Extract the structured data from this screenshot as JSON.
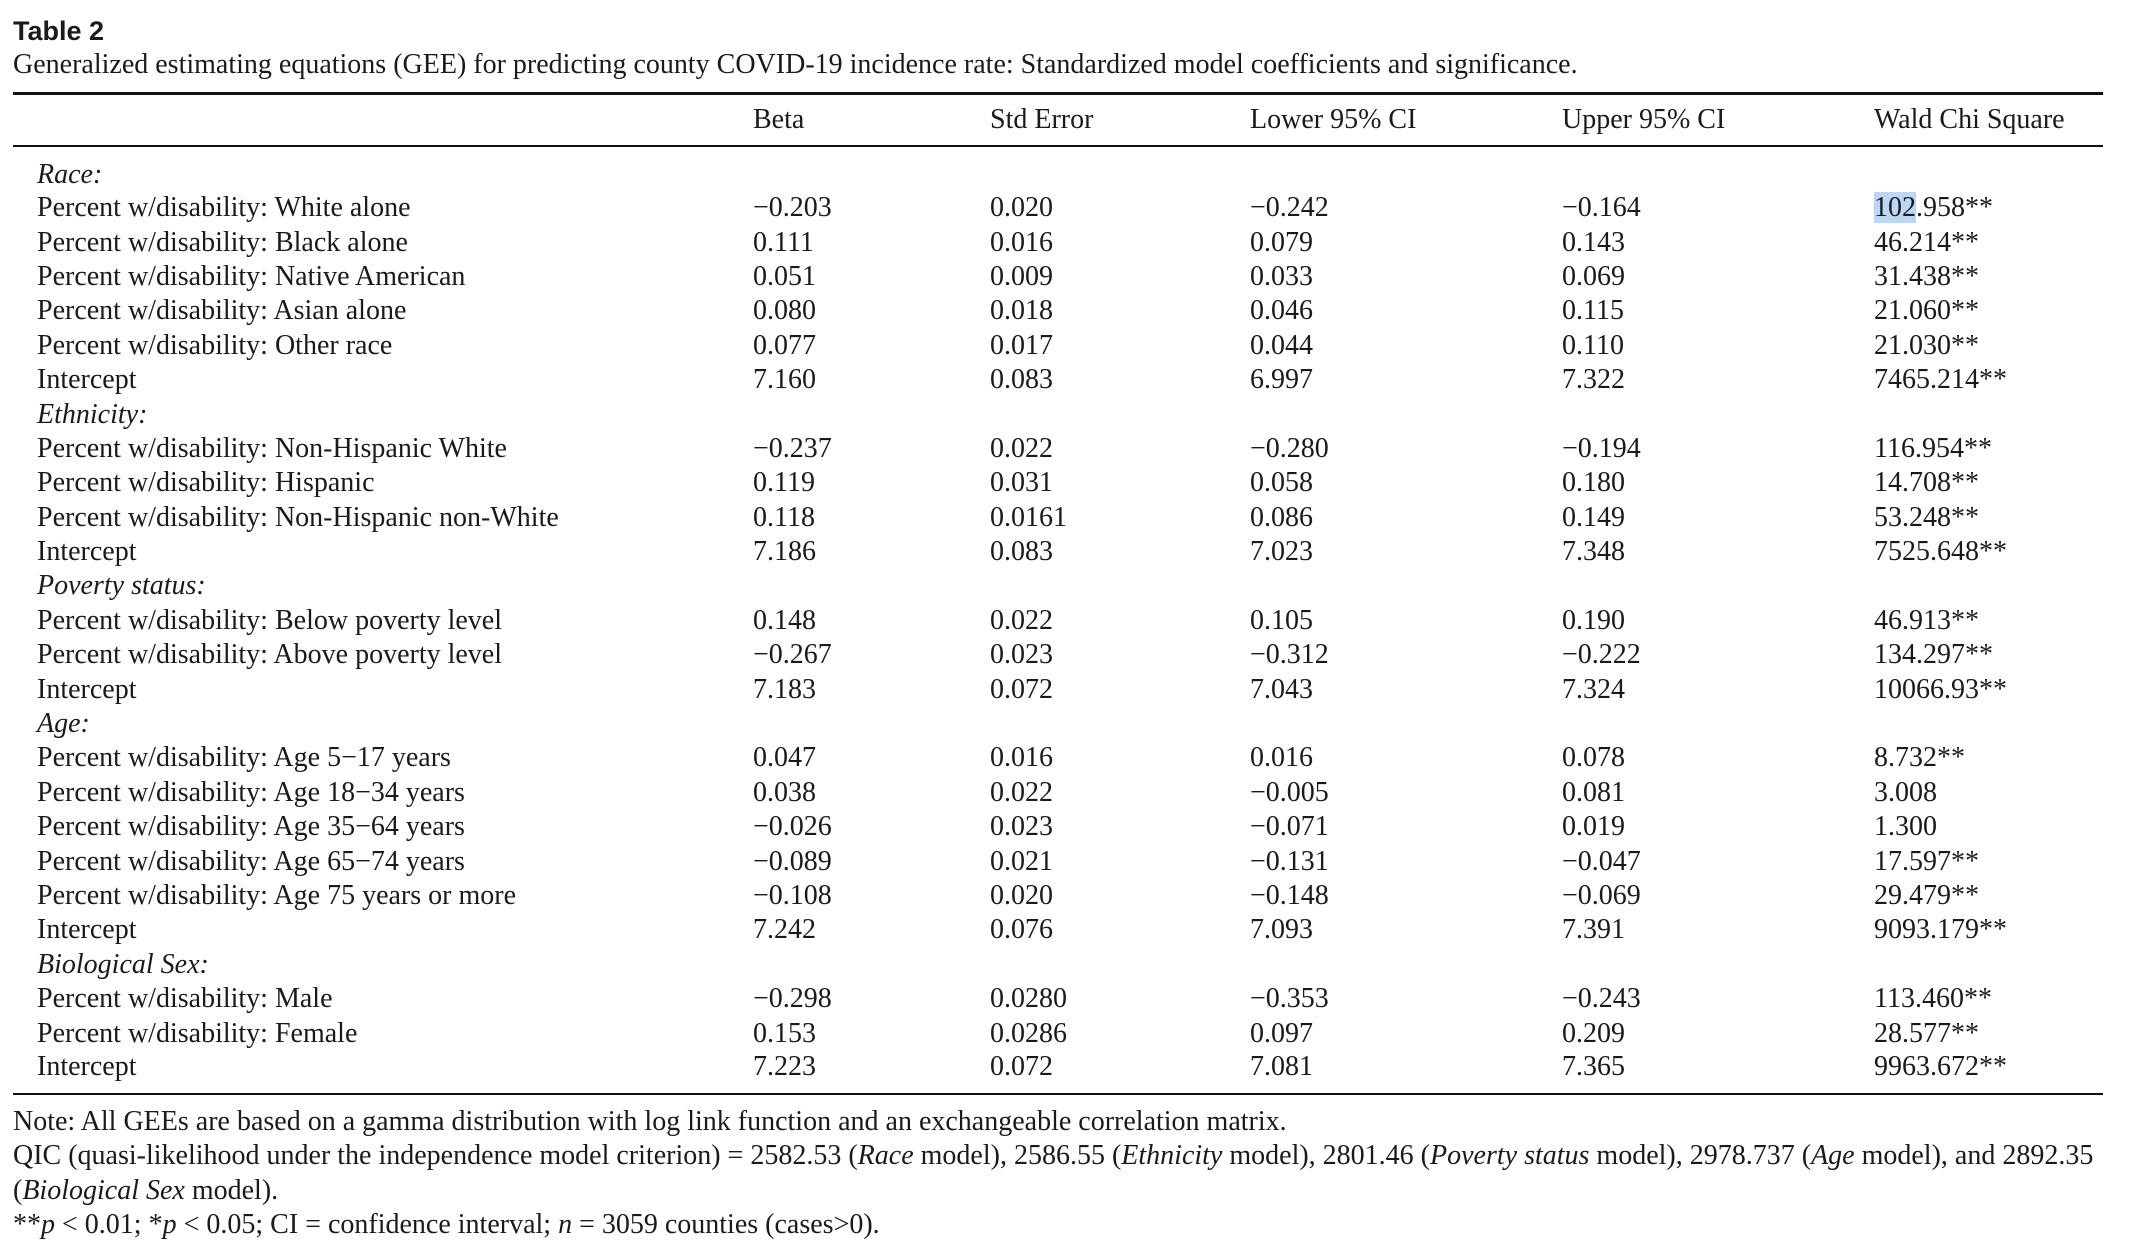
{
  "table_label": "Table 2",
  "caption": "Generalized estimating equations (GEE) for predicting county COVID-19 incidence rate: Standardized model coefficients and significance.",
  "columns": [
    "",
    "Beta",
    "Std Error",
    "Lower 95% CI",
    "Upper 95% CI",
    "Wald Chi Square"
  ],
  "sections": [
    {
      "title": "Race:",
      "rows": [
        [
          "Percent w/disability: White alone",
          "−0.203",
          "0.020",
          "−0.242",
          "−0.164",
          "102.958**"
        ],
        [
          "Percent w/disability: Black alone",
          "0.111",
          "0.016",
          "0.079",
          "0.143",
          "46.214**"
        ],
        [
          "Percent w/disability: Native American",
          "0.051",
          "0.009",
          "0.033",
          "0.069",
          "31.438**"
        ],
        [
          "Percent w/disability: Asian alone",
          "0.080",
          "0.018",
          "0.046",
          "0.115",
          "21.060**"
        ],
        [
          "Percent w/disability: Other race",
          "0.077",
          "0.017",
          "0.044",
          "0.110",
          "21.030**"
        ],
        [
          "Intercept",
          "7.160",
          "0.083",
          "6.997",
          "7.322",
          "7465.214**"
        ]
      ]
    },
    {
      "title": "Ethnicity:",
      "rows": [
        [
          "Percent w/disability: Non-Hispanic White",
          "−0.237",
          "0.022",
          "−0.280",
          "−0.194",
          "116.954**"
        ],
        [
          "Percent w/disability: Hispanic",
          "0.119",
          "0.031",
          "0.058",
          "0.180",
          "14.708**"
        ],
        [
          "Percent w/disability: Non-Hispanic non-White",
          "0.118",
          "0.0161",
          "0.086",
          "0.149",
          "53.248**"
        ],
        [
          "Intercept",
          "7.186",
          "0.083",
          "7.023",
          "7.348",
          "7525.648**"
        ]
      ]
    },
    {
      "title": "Poverty status:",
      "rows": [
        [
          "Percent w/disability: Below poverty level",
          "0.148",
          "0.022",
          "0.105",
          "0.190",
          "46.913**"
        ],
        [
          "Percent w/disability: Above poverty level",
          "−0.267",
          "0.023",
          "−0.312",
          "−0.222",
          "134.297**"
        ],
        [
          "Intercept",
          "7.183",
          "0.072",
          "7.043",
          "7.324",
          "10066.93**"
        ]
      ]
    },
    {
      "title": "Age:",
      "rows": [
        [
          "Percent w/disability: Age 5−17 years",
          "0.047",
          "0.016",
          "0.016",
          "0.078",
          "8.732**"
        ],
        [
          "Percent w/disability: Age 18−34 years",
          "0.038",
          "0.022",
          "−0.005",
          "0.081",
          "3.008"
        ],
        [
          "Percent w/disability: Age 35−64 years",
          "−0.026",
          "0.023",
          "−0.071",
          "0.019",
          "1.300"
        ],
        [
          "Percent w/disability: Age 65−74 years",
          "−0.089",
          "0.021",
          "−0.131",
          "−0.047",
          "17.597**"
        ],
        [
          "Percent w/disability: Age 75 years or more",
          "−0.108",
          "0.020",
          "−0.148",
          "−0.069",
          "29.479**"
        ],
        [
          "Intercept",
          "7.242",
          "0.076",
          "7.093",
          "7.391",
          "9093.179**"
        ]
      ]
    },
    {
      "title": "Biological Sex:",
      "rows": [
        [
          "Percent w/disability: Male",
          "−0.298",
          "0.0280",
          "−0.353",
          "−0.243",
          "113.460**"
        ],
        [
          "Percent w/disability: Female",
          "0.153",
          "0.0286",
          "0.097",
          "0.209",
          "28.577**"
        ],
        [
          "Intercept",
          "7.223",
          "0.072",
          "7.081",
          "7.365",
          "9963.672**"
        ]
      ]
    }
  ],
  "selection": {
    "text": "102",
    "highlight_color": "#bcd6f3"
  },
  "notes": {
    "line1": "Note: All GEEs are based on a gamma distribution with log link function and an exchangeable correlation matrix.",
    "qic_prefix": "QIC (quasi-likelihood under the independence model criterion) = 2582.53 (",
    "qic_race": "Race",
    "qic_mid1": " model), 2586.55 (",
    "qic_ethnicity": "Ethnicity",
    "qic_mid2": " model), 2801.46 (",
    "qic_poverty": "Poverty status",
    "qic_mid3": " model), 2978.737 (",
    "qic_age": "Age",
    "qic_mid4": " model), and 2892.35 (",
    "qic_sex": "Biological Sex",
    "qic_suffix": " model).",
    "sig_p1": "**",
    "sig_p1_var": "p",
    "sig_mid1": " < 0.01; *",
    "sig_p2_var": "p",
    "sig_mid2": " < 0.05; CI = confidence interval; ",
    "sig_n_var": "n",
    "sig_tail": " = 3059 counties (cases>0)."
  }
}
